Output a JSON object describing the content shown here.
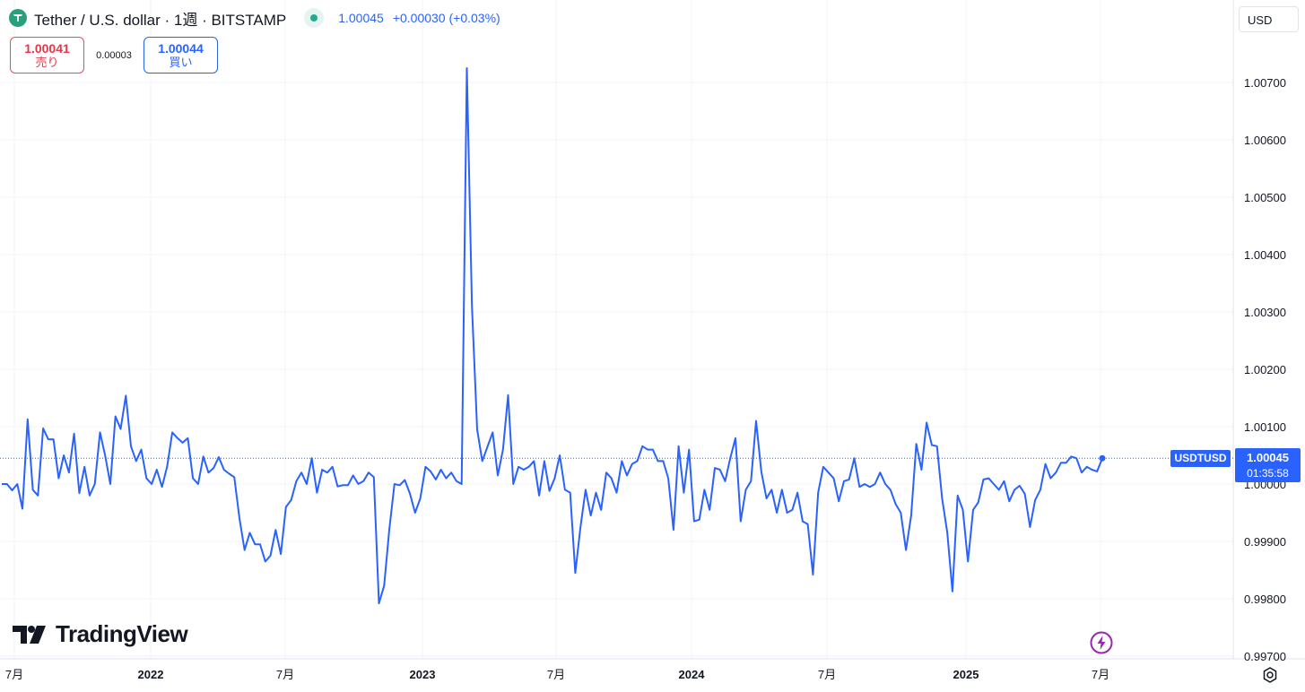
{
  "header": {
    "title": "Tether / U.S. dollar · 1週 · BITSTAMP",
    "price": "1.00045",
    "change": "+0.00030 (+0.03%)"
  },
  "quotes": {
    "sell_value": "1.00041",
    "sell_label": "売り",
    "spread": "0.00003",
    "buy_value": "1.00044",
    "buy_label": "買い"
  },
  "currency": "USD",
  "price_tag": {
    "symbol": "USDTUSD",
    "value": "1.00045",
    "countdown": "01:35:58"
  },
  "brand": "TradingView",
  "icons": {
    "coin": "tether-icon",
    "status": "market-open-dot-icon",
    "logo": "tradingview-logo-icon",
    "bolt": "lightning-icon",
    "gear": "settings-gear-icon"
  },
  "colors": {
    "line": "#2962ff",
    "accent": "#2962ff",
    "sell": "#e2384a",
    "buy": "#2962ff",
    "coin": "#26a17b",
    "grid": "#f0f3fa"
  },
  "chart_data": {
    "type": "line",
    "series": [
      {
        "name": "USDTUSD",
        "values": [
          1.0,
          1.0,
          0.99989,
          1.0,
          0.99957,
          1.00113,
          0.9999,
          0.9998,
          1.00097,
          1.00078,
          1.00078,
          1.0001,
          1.0005,
          1.0002,
          1.00088,
          0.99984,
          1.0003,
          0.9998,
          1.0,
          1.0009,
          1.0005,
          1.0,
          1.00118,
          1.00096,
          1.00154,
          1.00066,
          1.0004,
          1.0006,
          1.0001,
          1.0,
          1.00025,
          0.99995,
          1.0003,
          1.0009,
          1.0008,
          1.00072,
          1.0008,
          1.0001,
          1.0,
          1.00048,
          1.0002,
          1.00028,
          1.00047,
          1.00025,
          1.00018,
          1.00012,
          0.9994,
          0.99885,
          0.99915,
          0.99895,
          0.99895,
          0.99865,
          0.99875,
          0.9992,
          0.99878,
          0.9996,
          0.99972,
          1.00005,
          1.0002,
          1.0,
          1.00045,
          0.99985,
          1.00025,
          1.0002,
          1.0003,
          0.99996,
          0.99998,
          0.99998,
          1.00015,
          1.0,
          1.00005,
          1.0002,
          1.00012,
          0.99792,
          0.99823,
          0.9992,
          1.0,
          0.99998,
          1.00007,
          0.99983,
          0.9995,
          0.99975,
          1.0003,
          1.00022,
          1.00008,
          1.00025,
          1.0001,
          1.0002,
          1.00005,
          1.0,
          1.00725,
          1.0031,
          1.00095,
          1.0004,
          1.00065,
          1.0009,
          1.00015,
          1.0006,
          1.00155,
          1.0,
          1.0003,
          1.00025,
          1.0003,
          1.0004,
          0.9998,
          1.0004,
          0.99988,
          1.0001,
          1.0005,
          0.9999,
          0.99985,
          0.99845,
          0.99925,
          0.9999,
          0.99945,
          0.99985,
          0.99955,
          1.0002,
          1.0001,
          0.99985,
          1.0004,
          1.00015,
          1.00035,
          1.0004,
          1.00066,
          1.0006,
          1.0006,
          1.0004,
          1.0004,
          1.0001,
          0.9992,
          1.00066,
          0.99985,
          1.0006,
          0.99935,
          0.99938,
          0.9999,
          0.99955,
          1.00028,
          1.00025,
          1.00005,
          1.00045,
          1.0008,
          0.99935,
          0.9999,
          1.00005,
          1.0011,
          1.00022,
          0.99975,
          0.9999,
          0.9995,
          0.9999,
          0.9995,
          0.99955,
          0.99985,
          0.99935,
          0.9993,
          0.99842,
          0.99985,
          1.0003,
          1.0002,
          1.0001,
          0.9997,
          1.00005,
          1.00008,
          1.00045,
          0.99995,
          1.0,
          0.99995,
          1.0,
          1.0002,
          1.0,
          0.9999,
          0.99965,
          0.9995,
          0.99885,
          0.99945,
          1.0007,
          1.00025,
          1.00107,
          1.00068,
          1.00066,
          0.99975,
          0.99915,
          0.99813,
          0.9998,
          0.99955,
          0.99865,
          0.99955,
          0.99968,
          1.00008,
          1.0001,
          1.0,
          0.9999,
          1.00005,
          0.9997,
          0.9999,
          0.99997,
          0.99983,
          0.99925,
          0.99972,
          0.9999,
          1.00035,
          1.0001,
          1.0002,
          1.00037,
          1.00037,
          1.00048,
          1.00045,
          1.0002,
          1.0003,
          1.00025,
          1.00022,
          1.00045
        ]
      }
    ],
    "x_tick_labels": [
      "7月",
      "2022",
      "7月",
      "2023",
      "7月",
      "2024",
      "7月",
      "2025",
      "7月"
    ],
    "y_tick_labels": [
      "1.00700",
      "1.00600",
      "1.00500",
      "1.00400",
      "1.00300",
      "1.00200",
      "1.00100",
      "1.00000",
      "0.99900",
      "0.99800",
      "0.99700"
    ],
    "ylim": [
      0.997,
      1.008
    ],
    "last_price": 1.00045,
    "grid": true,
    "legend": "none"
  }
}
